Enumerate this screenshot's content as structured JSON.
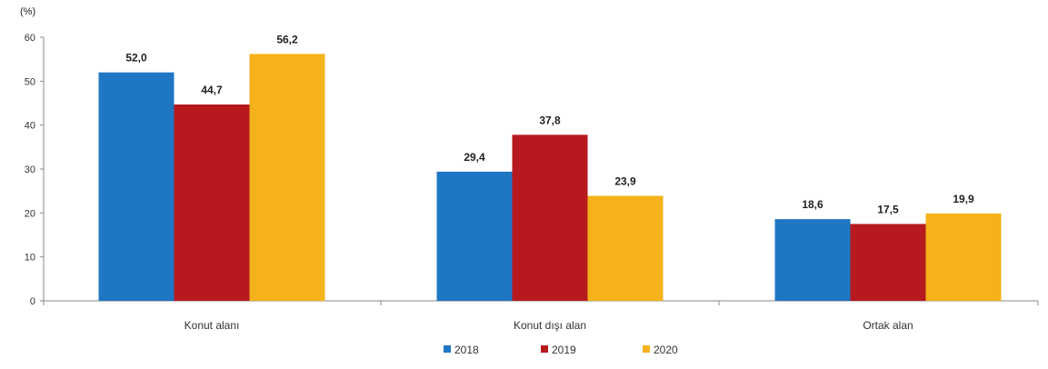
{
  "chart_data": {
    "type": "bar",
    "ylabel": "(%)",
    "ylim": [
      0,
      60
    ],
    "yticks": [
      0,
      10,
      20,
      30,
      40,
      50,
      60
    ],
    "yticks_labels": [
      "0",
      "10",
      "20",
      "30",
      "40",
      "50",
      "60"
    ],
    "categories": [
      "Konut alanı",
      "Konut dışı alan",
      "Ortak alan"
    ],
    "series": [
      {
        "name": "2018",
        "color": "#1f77c4",
        "values": [
          52.0,
          29.4,
          18.6
        ],
        "labels": [
          "52,0",
          "29,4",
          "18,6"
        ]
      },
      {
        "name": "2019",
        "color": "#b61a1f",
        "values": [
          44.7,
          37.8,
          17.5
        ],
        "labels": [
          "44,7",
          "37,8",
          "17,5"
        ]
      },
      {
        "name": "2020",
        "color": "#f6b21b",
        "values": [
          56.2,
          23.9,
          19.9
        ],
        "labels": [
          "56,2",
          "23,9",
          "19,9"
        ]
      }
    ],
    "grid": false,
    "legend": "bottom-center"
  }
}
